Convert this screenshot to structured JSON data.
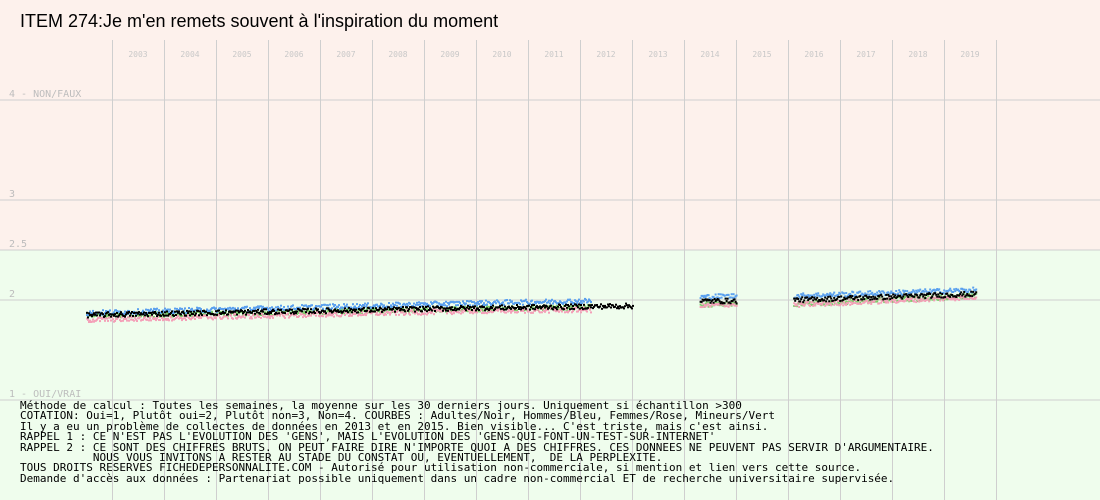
{
  "title": "ITEM 274:Je m'en remets souvent à l'inspiration du moment",
  "colors": {
    "zone_top": "#fdf1ec",
    "zone_bottom": "#effded",
    "grid": "#cfcfcf",
    "year_label": "#c8c8c8",
    "y_label": "#bdbdbd",
    "adults": "#000000",
    "men": "#5aa0ee",
    "women": "#f4a0b8",
    "minors": "#7ccc6a"
  },
  "chart_data": {
    "type": "scatter",
    "title": "ITEM 274:Je m'en remets souvent à l'inspiration du moment",
    "x_years": [
      "2003",
      "2004",
      "2005",
      "2006",
      "2007",
      "2008",
      "2009",
      "2010",
      "2011",
      "2012",
      "2013",
      "2014",
      "2015",
      "2016",
      "2017",
      "2018",
      "2019"
    ],
    "y_ticks": [
      {
        "value": 4,
        "label": "4 - NON/FAUX"
      },
      {
        "value": 3,
        "label": "3"
      },
      {
        "value": 2.5,
        "label": "2.5"
      },
      {
        "value": 2,
        "label": "2"
      },
      {
        "value": 1,
        "label": "1 - OUI/VRAI"
      }
    ],
    "ylim": [
      1,
      4
    ],
    "zones": [
      {
        "from": 2.5,
        "to": 4,
        "color": "zone_top"
      },
      {
        "from": 1,
        "to": 2.5,
        "color": "zone_bottom"
      }
    ],
    "grid": true,
    "series": [
      {
        "name": "Adultes",
        "color": "adults",
        "segments": [
          {
            "from": 2002.5,
            "to": 2010.0,
            "start": 1.85,
            "end": 1.92
          },
          {
            "from": 2010.0,
            "to": 2013.0,
            "start": 1.92,
            "end": 1.94
          },
          {
            "from": 2014.3,
            "to": 2015.0,
            "start": 1.99,
            "end": 1.99
          },
          {
            "from": 2016.1,
            "to": 2019.6,
            "start": 2.0,
            "end": 2.06
          }
        ]
      },
      {
        "name": "Hommes",
        "color": "men",
        "segments": [
          {
            "from": 2002.5,
            "to": 2010.0,
            "start": 1.87,
            "end": 1.97
          },
          {
            "from": 2010.0,
            "to": 2012.2,
            "start": 1.97,
            "end": 1.99
          },
          {
            "from": 2014.3,
            "to": 2015.0,
            "start": 2.03,
            "end": 2.04
          },
          {
            "from": 2016.1,
            "to": 2019.6,
            "start": 2.04,
            "end": 2.1
          }
        ]
      },
      {
        "name": "Femmes",
        "color": "women",
        "segments": [
          {
            "from": 2002.5,
            "to": 2010.0,
            "start": 1.8,
            "end": 1.89
          },
          {
            "from": 2010.0,
            "to": 2012.2,
            "start": 1.89,
            "end": 1.9
          },
          {
            "from": 2014.3,
            "to": 2015.0,
            "start": 1.94,
            "end": 1.96
          },
          {
            "from": 2016.1,
            "to": 2019.6,
            "start": 1.95,
            "end": 2.03
          }
        ]
      },
      {
        "name": "Mineurs",
        "color": "minors",
        "segments": [
          {
            "from": 2002.5,
            "to": 2010.0,
            "start": 1.84,
            "end": 1.91
          },
          {
            "from": 2010.0,
            "to": 2012.2,
            "start": 1.91,
            "end": 1.93
          },
          {
            "from": 2014.3,
            "to": 2015.0,
            "start": 1.95,
            "end": 1.97
          },
          {
            "from": 2016.1,
            "to": 2019.6,
            "start": 1.96,
            "end": 2.04
          }
        ]
      }
    ]
  },
  "notes": [
    "Méthode de calcul : Toutes les semaines, la moyenne sur les 30 derniers jours. Uniquement si échantillon >300",
    "COTATION: Oui=1, Plutôt oui=2, Plutôt non=3, Non=4. COURBES : Adultes/Noir, Hommes/Bleu, Femmes/Rose, Mineurs/Vert",
    "Il y a eu un problème de collectes de données en 2013 et en 2015. Bien visible... C'est triste, mais c'est ainsi.",
    "RAPPEL 1 : CE N'EST PAS L'EVOLUTION DES 'GENS', MAIS L'EVOLUTION DES 'GENS-QUI-FONT-UN-TEST-SUR-INTERNET'",
    "RAPPEL 2 : CE SONT DES CHIFFRES BRUTS. ON PEUT FAIRE DIRE N'IMPORTE QUOI A DES CHIFFRES. CES DONNEES NE PEUVENT PAS SERVIR D'ARGUMENTAIRE.",
    "           NOUS VOUS INVITONS A RESTER AU STADE DU CONSTAT OU, EVENTUELLEMENT,  DE LA PERPLEXITE.",
    "TOUS DROITS RESERVES FICHEDEPERSONNALITE.COM - Autorisé pour utilisation non-commerciale, si mention et lien vers cette source.",
    "Demande d'accès aux données : Partenariat possible uniquement dans un cadre non-commercial ET de recherche universitaire supervisée."
  ]
}
